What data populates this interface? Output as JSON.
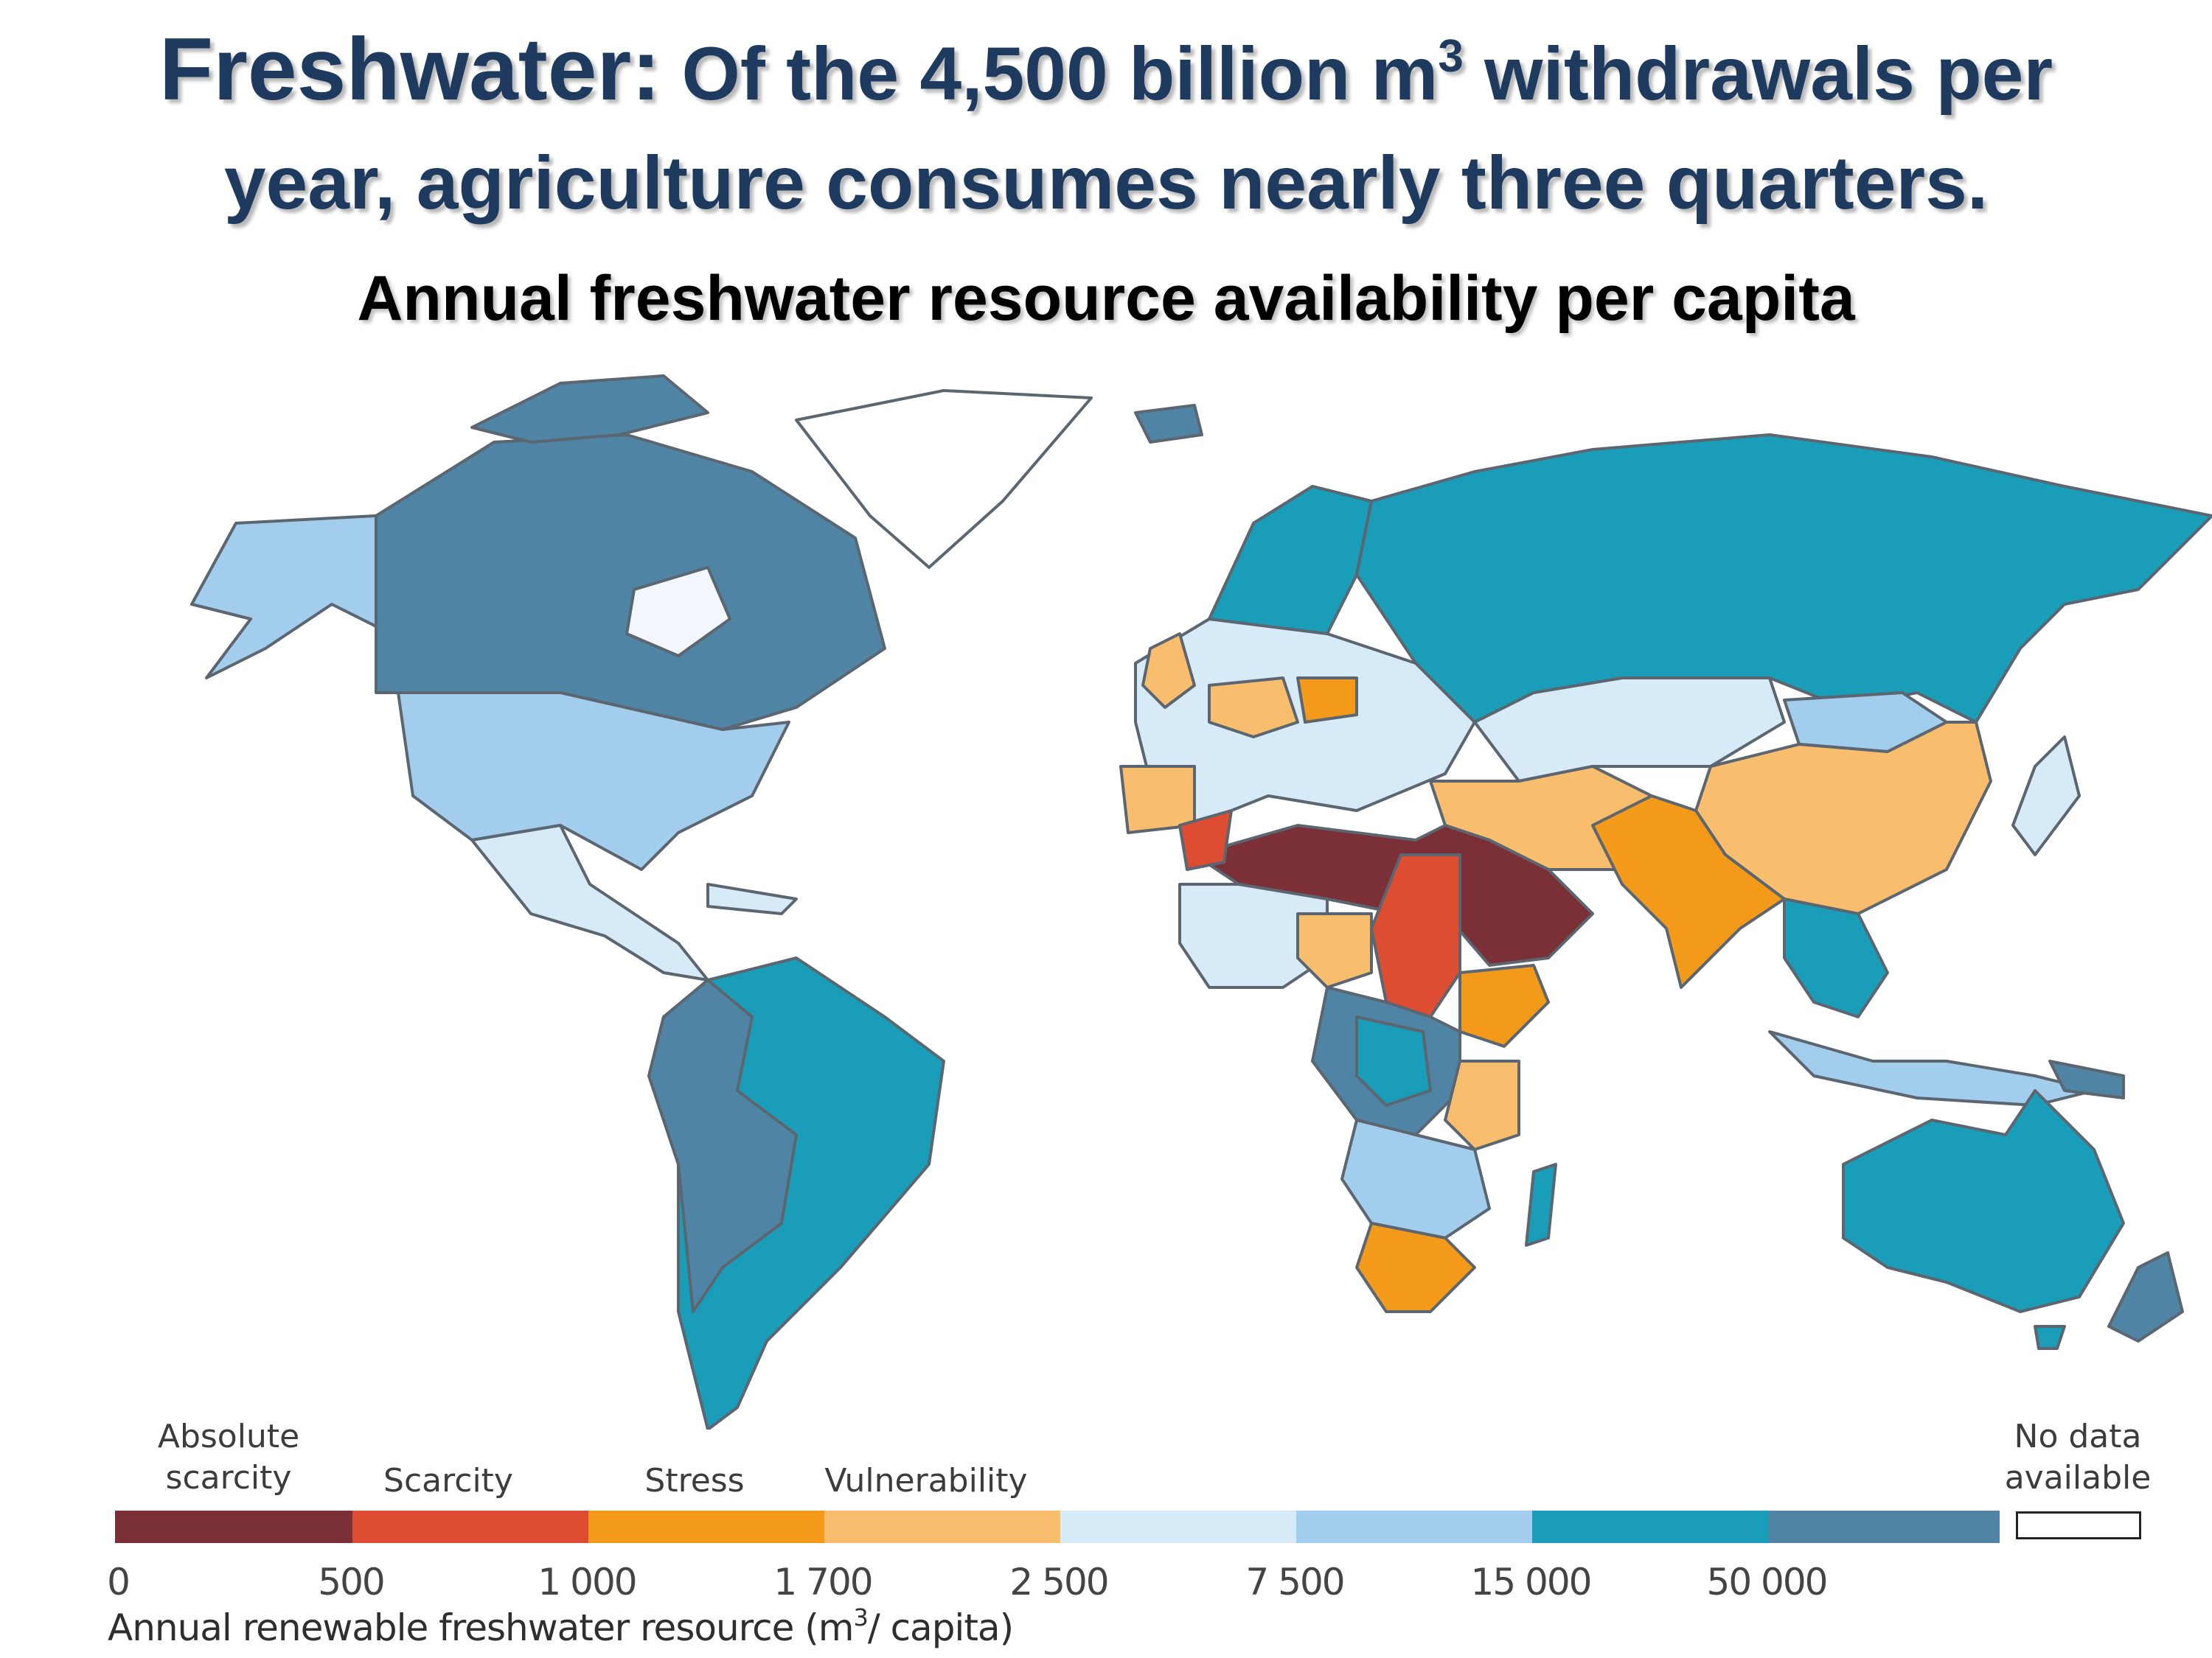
{
  "title": {
    "lead": "Freshwater:",
    "rest_before_exp": " Of the 4,500 billion m",
    "exponent": "3",
    "rest_after_exp": " withdrawals per",
    "line2": "year, agriculture consumes nearly three quarters."
  },
  "subtitle": "Annual freshwater resource availability per capita",
  "legend": {
    "categories": [
      {
        "line1": "Absolute",
        "line2": "scarcity"
      },
      {
        "line1": "Scarcity"
      },
      {
        "line1": "Stress"
      },
      {
        "line1": "Vulnerability"
      }
    ],
    "no_data": {
      "line1": "No data",
      "line2": "available"
    },
    "ticks": [
      "0",
      "500",
      "1 000",
      "1 700",
      "2 500",
      "7 500",
      "15 000",
      "50 000"
    ],
    "colors": [
      "#7b2f36",
      "#de4c32",
      "#f39a1a",
      "#f9be6d",
      "#d6eaf8",
      "#a3cdec",
      "#1a9db8",
      "#4f84a5"
    ],
    "axis_label_before_exp": "Annual renewable freshwater resource (m",
    "axis_label_exp": "3",
    "axis_label_after_exp": "/ capita)"
  },
  "regions": [
    {
      "name": "Alaska",
      "cls": "vuln-mid"
    },
    {
      "name": "Canada",
      "cls": "very-high"
    },
    {
      "name": "Greenland",
      "cls": "no-data"
    },
    {
      "name": "United States",
      "cls": "moderate"
    },
    {
      "name": "Central America",
      "cls": "low-mid"
    },
    {
      "name": "South America",
      "cls": "high"
    },
    {
      "name": "Europe",
      "cls": "low-mid"
    },
    {
      "name": "Russia",
      "cls": "high"
    },
    {
      "name": "Central Asia",
      "cls": "low-mid"
    },
    {
      "name": "China",
      "cls": "vulnerability"
    },
    {
      "name": "India",
      "cls": "stress"
    },
    {
      "name": "North Africa & Arabia",
      "cls": "absolute-scarcity"
    },
    {
      "name": "Egypt / Sudan",
      "cls": "scarcity"
    },
    {
      "name": "Central Africa",
      "cls": "very-high"
    },
    {
      "name": "Southern Africa",
      "cls": "stress"
    },
    {
      "name": "Australia",
      "cls": "high"
    },
    {
      "name": "Southeast Asia",
      "cls": "high"
    }
  ]
}
